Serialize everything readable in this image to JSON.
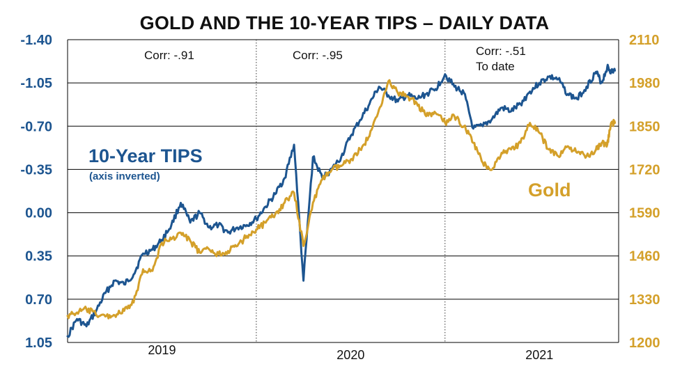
{
  "chart_data": {
    "type": "line",
    "title": "GOLD AND THE 10-YEAR TIPS – DAILY DATA",
    "colors": {
      "tips": "#1d5590",
      "gold": "#d4a02a",
      "text": "#111111"
    },
    "left_axis": {
      "label": "10-Year TIPS",
      "sublabel": "(axis inverted)",
      "inverted": true,
      "range": [
        -1.4,
        1.05
      ],
      "ticks": [
        "-1.40",
        "-1.05",
        "-0.70",
        "-0.35",
        "0.00",
        "0.35",
        "0.70",
        "1.05"
      ]
    },
    "right_axis": {
      "label": "Gold",
      "range": [
        1200,
        2110
      ],
      "ticks": [
        "2110",
        "1980",
        "1850",
        "1720",
        "1590",
        "1460",
        "1330",
        "1200"
      ]
    },
    "x_range": [
      2018.5,
      2021.42
    ],
    "year_dividers": [
      2019.5,
      2020.5
    ],
    "xticks": [
      {
        "label": "2019",
        "x": 2019.0
      },
      {
        "label": "2020",
        "x": 2020.0
      },
      {
        "label": "2021",
        "x": 2021.0
      }
    ],
    "annotations": [
      {
        "lines": [
          "Corr: -.91"
        ]
      },
      {
        "lines": [
          "Corr: -.95"
        ]
      },
      {
        "lines": [
          "Corr: -.51",
          "To date"
        ]
      }
    ],
    "series": [
      {
        "name": "10-Year TIPS",
        "axis": "left",
        "x": [
          2018.5,
          2018.55,
          2018.6,
          2018.65,
          2018.7,
          2018.75,
          2018.8,
          2018.85,
          2018.9,
          2018.95,
          2019.0,
          2019.05,
          2019.1,
          2019.15,
          2019.2,
          2019.25,
          2019.3,
          2019.35,
          2019.4,
          2019.45,
          2019.5,
          2019.55,
          2019.6,
          2019.65,
          2019.7,
          2019.75,
          2019.8,
          2019.85,
          2019.9,
          2019.95,
          2020.0,
          2020.05,
          2020.1,
          2020.15,
          2020.2,
          2020.25,
          2020.3,
          2020.35,
          2020.4,
          2020.45,
          2020.5,
          2020.55,
          2020.6,
          2020.65,
          2020.7,
          2020.75,
          2020.8,
          2020.85,
          2020.9,
          2020.95,
          2021.0,
          2021.05,
          2021.1,
          2021.15,
          2021.2,
          2021.25,
          2021.3,
          2021.33,
          2021.36,
          2021.38,
          2021.4
        ],
        "values": [
          1.0,
          0.86,
          0.92,
          0.8,
          0.65,
          0.55,
          0.58,
          0.5,
          0.33,
          0.3,
          0.22,
          0.1,
          -0.08,
          0.08,
          0.0,
          0.12,
          0.1,
          0.16,
          0.12,
          0.1,
          0.05,
          -0.05,
          -0.15,
          -0.28,
          -0.55,
          0.55,
          -0.45,
          -0.28,
          -0.35,
          -0.45,
          -0.62,
          -0.75,
          -0.88,
          -1.02,
          -0.95,
          -0.9,
          -0.95,
          -0.92,
          -0.96,
          -1.0,
          -1.12,
          -1.02,
          -0.97,
          -0.68,
          -0.7,
          -0.76,
          -0.85,
          -0.82,
          -0.88,
          -0.98,
          -1.05,
          -1.1,
          -1.08,
          -0.96,
          -0.92,
          -1.02,
          -1.14,
          -1.05,
          -1.18,
          -1.14,
          -1.15
        ]
      },
      {
        "name": "Gold",
        "axis": "right",
        "x": [
          2018.5,
          2018.55,
          2018.6,
          2018.65,
          2018.7,
          2018.75,
          2018.8,
          2018.85,
          2018.9,
          2018.95,
          2019.0,
          2019.05,
          2019.1,
          2019.15,
          2019.2,
          2019.25,
          2019.3,
          2019.35,
          2019.4,
          2019.45,
          2019.5,
          2019.55,
          2019.6,
          2019.65,
          2019.7,
          2019.75,
          2019.8,
          2019.85,
          2019.9,
          2019.95,
          2020.0,
          2020.05,
          2020.1,
          2020.15,
          2020.2,
          2020.25,
          2020.3,
          2020.35,
          2020.4,
          2020.45,
          2020.5,
          2020.55,
          2020.6,
          2020.65,
          2020.7,
          2020.75,
          2020.8,
          2020.85,
          2020.9,
          2020.95,
          2021.0,
          2021.05,
          2021.1,
          2021.15,
          2021.2,
          2021.25,
          2021.3,
          2021.33,
          2021.36,
          2021.38,
          2021.4
        ],
        "values": [
          1280,
          1290,
          1300,
          1285,
          1278,
          1282,
          1295,
          1320,
          1420,
          1415,
          1500,
          1510,
          1530,
          1505,
          1470,
          1480,
          1465,
          1475,
          1490,
          1520,
          1540,
          1560,
          1585,
          1620,
          1650,
          1490,
          1620,
          1690,
          1720,
          1730,
          1750,
          1780,
          1820,
          1900,
          1985,
          1950,
          1940,
          1920,
          1880,
          1890,
          1860,
          1880,
          1850,
          1800,
          1740,
          1720,
          1770,
          1780,
          1800,
          1860,
          1830,
          1780,
          1760,
          1790,
          1770,
          1760,
          1780,
          1800,
          1795,
          1860,
          1860
        ]
      }
    ]
  }
}
